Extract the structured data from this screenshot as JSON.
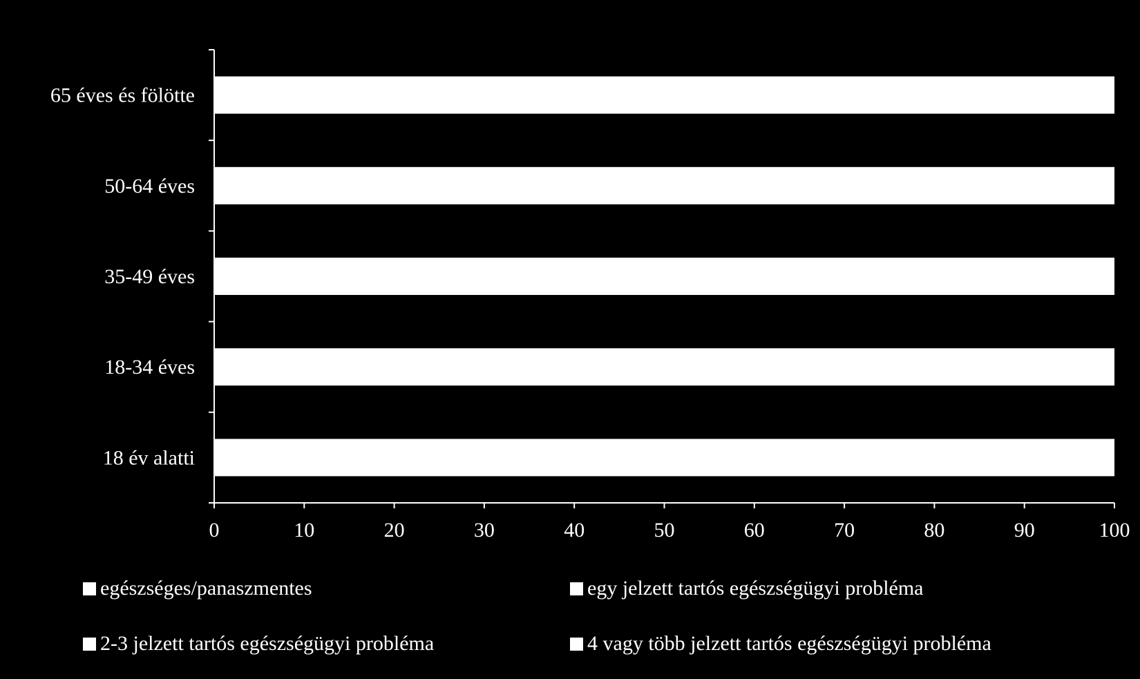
{
  "chart_data": {
    "type": "bar",
    "orientation": "horizontal",
    "stacked": true,
    "categories": [
      "65 éves és fölötte",
      "50-64 éves",
      "35-49 éves",
      "18-34 éves",
      "18 év alatti"
    ],
    "series": [
      {
        "name": "egészséges/panaszmentes",
        "values": [
          100,
          100,
          100,
          100,
          100
        ]
      },
      {
        "name": "egy jelzett tartós egészségügyi probléma",
        "values": [
          0,
          0,
          0,
          0,
          0
        ]
      },
      {
        "name": "2-3 jelzett tartós egészségügyi probléma",
        "values": [
          0,
          0,
          0,
          0,
          0
        ]
      },
      {
        "name": "4 vagy több jelzett tartós egészségügyi probléma",
        "values": [
          0,
          0,
          0,
          0,
          0
        ]
      }
    ],
    "xlim": [
      0,
      100
    ],
    "xticks": [
      "0",
      "10",
      "20",
      "30",
      "40",
      "50",
      "60",
      "70",
      "80",
      "90",
      "100"
    ],
    "title": "",
    "xlabel": "",
    "ylabel": "",
    "grid": false,
    "legend_position": "bottom",
    "colors": {
      "background": "#000000",
      "bars": "#ffffff",
      "axis": "#ffffff",
      "text": "#ffffff"
    }
  }
}
